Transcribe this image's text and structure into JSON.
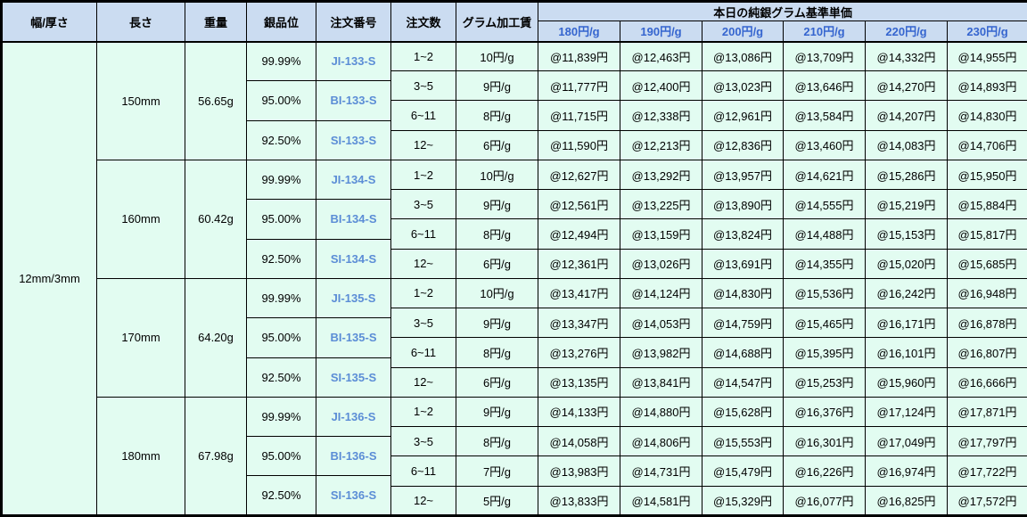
{
  "table": {
    "header": {
      "width_thickness": "幅/厚さ",
      "length": "長さ",
      "weight": "重量",
      "purity": "銀品位",
      "order_no": "注文番号",
      "order_qty": "注文数",
      "gram_fee": "グラム加工賃",
      "base_price_group": "本日の純銀グラム基準単価",
      "price_tiers": [
        "180円/g",
        "190円/g",
        "200円/g",
        "210円/g",
        "220円/g",
        "230円/g"
      ]
    },
    "width_thickness_value": "12mm/3mm",
    "blocks": [
      {
        "length": "150mm",
        "weight": "56.65g",
        "purities": [
          {
            "purity": "99.99%",
            "order_no": "JI-133-S"
          },
          {
            "purity": "95.00%",
            "order_no": "BI-133-S"
          },
          {
            "purity": "92.50%",
            "order_no": "SI-133-S"
          }
        ],
        "tiers": [
          {
            "qty": "1~2",
            "fee": "10円/g",
            "prices": [
              "@11,839円",
              "@12,463円",
              "@13,086円",
              "@13,709円",
              "@14,332円",
              "@14,955円"
            ]
          },
          {
            "qty": "3~5",
            "fee": "9円/g",
            "prices": [
              "@11,777円",
              "@12,400円",
              "@13,023円",
              "@13,646円",
              "@14,270円",
              "@14,893円"
            ]
          },
          {
            "qty": "6~11",
            "fee": "8円/g",
            "prices": [
              "@11,715円",
              "@12,338円",
              "@12,961円",
              "@13,584円",
              "@14,207円",
              "@14,830円"
            ]
          },
          {
            "qty": "12~",
            "fee": "6円/g",
            "prices": [
              "@11,590円",
              "@12,213円",
              "@12,836円",
              "@13,460円",
              "@14,083円",
              "@14,706円"
            ]
          }
        ]
      },
      {
        "length": "160mm",
        "weight": "60.42g",
        "purities": [
          {
            "purity": "99.99%",
            "order_no": "JI-134-S"
          },
          {
            "purity": "95.00%",
            "order_no": "BI-134-S"
          },
          {
            "purity": "92.50%",
            "order_no": "SI-134-S"
          }
        ],
        "tiers": [
          {
            "qty": "1~2",
            "fee": "10円/g",
            "prices": [
              "@12,627円",
              "@13,292円",
              "@13,957円",
              "@14,621円",
              "@15,286円",
              "@15,950円"
            ]
          },
          {
            "qty": "3~5",
            "fee": "9円/g",
            "prices": [
              "@12,561円",
              "@13,225円",
              "@13,890円",
              "@14,555円",
              "@15,219円",
              "@15,884円"
            ]
          },
          {
            "qty": "6~11",
            "fee": "8円/g",
            "prices": [
              "@12,494円",
              "@13,159円",
              "@13,824円",
              "@14,488円",
              "@15,153円",
              "@15,817円"
            ]
          },
          {
            "qty": "12~",
            "fee": "6円/g",
            "prices": [
              "@12,361円",
              "@13,026円",
              "@13,691円",
              "@14,355円",
              "@15,020円",
              "@15,685円"
            ]
          }
        ]
      },
      {
        "length": "170mm",
        "weight": "64.20g",
        "purities": [
          {
            "purity": "99.99%",
            "order_no": "JI-135-S"
          },
          {
            "purity": "95.00%",
            "order_no": "BI-135-S"
          },
          {
            "purity": "92.50%",
            "order_no": "SI-135-S"
          }
        ],
        "tiers": [
          {
            "qty": "1~2",
            "fee": "10円/g",
            "prices": [
              "@13,417円",
              "@14,124円",
              "@14,830円",
              "@15,536円",
              "@16,242円",
              "@16,948円"
            ]
          },
          {
            "qty": "3~5",
            "fee": "9円/g",
            "prices": [
              "@13,347円",
              "@14,053円",
              "@14,759円",
              "@15,465円",
              "@16,171円",
              "@16,878円"
            ]
          },
          {
            "qty": "6~11",
            "fee": "8円/g",
            "prices": [
              "@13,276円",
              "@13,982円",
              "@14,688円",
              "@15,395円",
              "@16,101円",
              "@16,807円"
            ]
          },
          {
            "qty": "12~",
            "fee": "6円/g",
            "prices": [
              "@13,135円",
              "@13,841円",
              "@14,547円",
              "@15,253円",
              "@15,960円",
              "@16,666円"
            ]
          }
        ]
      },
      {
        "length": "180mm",
        "weight": "67.98g",
        "purities": [
          {
            "purity": "99.99%",
            "order_no": "JI-136-S"
          },
          {
            "purity": "95.00%",
            "order_no": "BI-136-S"
          },
          {
            "purity": "92.50%",
            "order_no": "SI-136-S"
          }
        ],
        "tiers": [
          {
            "qty": "1~2",
            "fee": "9円/g",
            "prices": [
              "@14,133円",
              "@14,880円",
              "@15,628円",
              "@16,376円",
              "@17,124円",
              "@17,871円"
            ]
          },
          {
            "qty": "3~5",
            "fee": "8円/g",
            "prices": [
              "@14,058円",
              "@14,806円",
              "@15,553円",
              "@16,301円",
              "@17,049円",
              "@17,797円"
            ]
          },
          {
            "qty": "6~11",
            "fee": "7円/g",
            "prices": [
              "@13,983円",
              "@14,731円",
              "@15,479円",
              "@16,226円",
              "@16,974円",
              "@17,722円"
            ]
          },
          {
            "qty": "12~",
            "fee": "5円/g",
            "prices": [
              "@13,833円",
              "@14,581円",
              "@15,329円",
              "@16,077円",
              "@16,825円",
              "@17,572円"
            ]
          }
        ]
      }
    ],
    "colors": {
      "header_bg": "#cbdcf1",
      "body_bg": "#e2fcf1",
      "tier_header_text": "#3565cf",
      "order_no_text": "#5b8dd6",
      "border": "#000000"
    }
  }
}
